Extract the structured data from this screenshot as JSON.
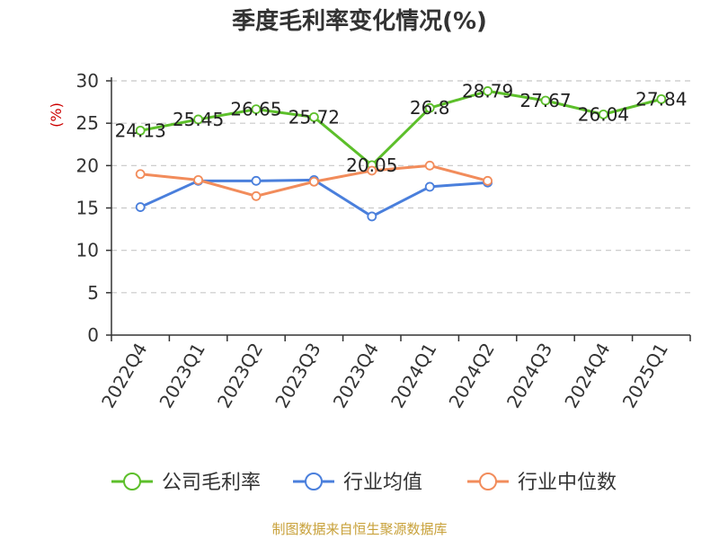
{
  "chart_data": {
    "type": "line",
    "title": "季度毛利率变化情况(%)",
    "ylabel": "(%)",
    "ylim": [
      0,
      30
    ],
    "yticks": [
      0,
      5,
      10,
      15,
      20,
      25,
      30
    ],
    "grid": true,
    "legend_position": "bottom",
    "categories": [
      "2022Q4",
      "2023Q1",
      "2023Q2",
      "2023Q3",
      "2023Q4",
      "2024Q1",
      "2024Q2",
      "2024Q3",
      "2024Q4",
      "2025Q1"
    ],
    "series": [
      {
        "name": "公司毛利率",
        "color": "#5cbf2a",
        "values": [
          24.13,
          25.45,
          26.65,
          25.72,
          20.05,
          26.8,
          28.79,
          27.67,
          26.04,
          27.84
        ],
        "labels": [
          "24.13",
          "25.45",
          "26.65",
          "25.72",
          "20.05",
          "26.8",
          "28.79",
          "27.67",
          "26.04",
          "27.84"
        ]
      },
      {
        "name": "行业均值",
        "color": "#4a7fdc",
        "values": [
          15.1,
          18.2,
          18.2,
          18.3,
          14.0,
          17.5,
          18.0,
          null,
          null,
          null
        ]
      },
      {
        "name": "行业中位数",
        "color": "#f28c5b",
        "values": [
          19.0,
          18.3,
          16.4,
          18.1,
          19.4,
          20.0,
          18.2,
          null,
          null,
          null
        ]
      }
    ],
    "source": "制图数据来自恒生聚源数据库"
  }
}
